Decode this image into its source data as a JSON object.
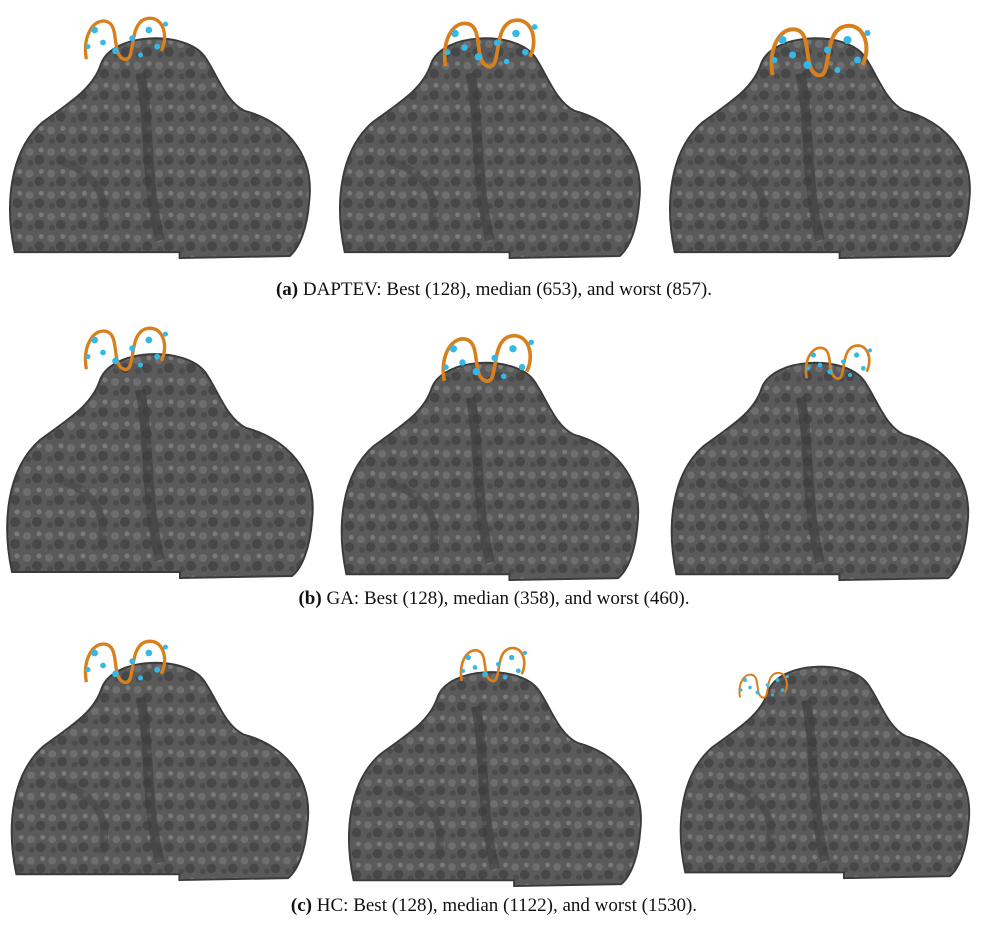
{
  "figure": {
    "subfigures": [
      {
        "label": "(a)",
        "caption": "DAPTEV: Best (128), median (653), and worst (857)."
      },
      {
        "label": "(b)",
        "caption": "GA: Best (128), median (358), and worst (460)."
      },
      {
        "label": "(c)",
        "caption": "HC: Best (128), median (1122), and worst (1530)."
      }
    ]
  }
}
